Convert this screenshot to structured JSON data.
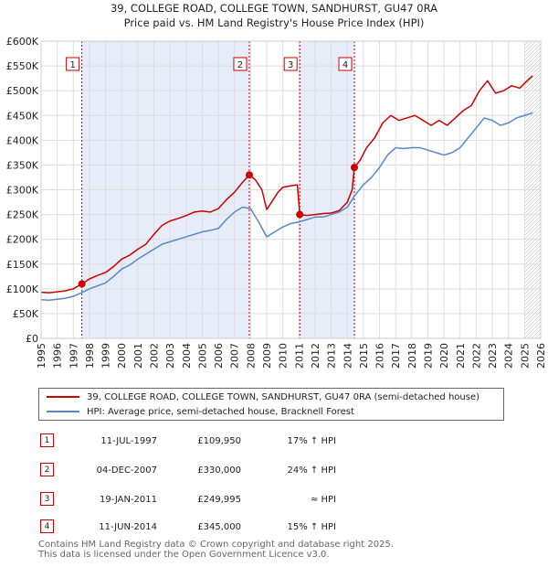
{
  "chart_data": {
    "type": "line",
    "title": "39, COLLEGE ROAD, COLLEGE TOWN, SANDHURST, GU47 0RA",
    "subtitle": "Price paid vs. HM Land Registry's House Price Index (HPI)",
    "xlim": [
      1995,
      2026
    ],
    "ylim": [
      0,
      600000
    ],
    "x_ticks": [
      1995,
      1996,
      1997,
      1998,
      1999,
      2000,
      2001,
      2002,
      2003,
      2004,
      2005,
      2006,
      2007,
      2008,
      2009,
      2010,
      2011,
      2012,
      2013,
      2014,
      2015,
      2016,
      2017,
      2018,
      2019,
      2020,
      2021,
      2022,
      2023,
      2024,
      2025,
      2026
    ],
    "x_tick_labels": [
      "1995",
      "1996",
      "1997",
      "1998",
      "1999",
      "2000",
      "2001",
      "2002",
      "2003",
      "2004",
      "2005",
      "2006",
      "2007",
      "2008",
      "2009",
      "2010",
      "2011",
      "2012",
      "2013",
      "2014",
      "2015",
      "2016",
      "2017",
      "2018",
      "2019",
      "2020",
      "2021",
      "2022",
      "2023",
      "2024",
      "2025",
      "2026"
    ],
    "y_ticks": [
      0,
      50000,
      100000,
      150000,
      200000,
      250000,
      300000,
      350000,
      400000,
      450000,
      500000,
      550000,
      600000
    ],
    "y_tick_labels": [
      "£0",
      "£50K",
      "£100K",
      "£150K",
      "£200K",
      "£250K",
      "£300K",
      "£350K",
      "£400K",
      "£450K",
      "£500K",
      "£550K",
      "£600K"
    ],
    "grid": true,
    "legend_position": "below",
    "forecast_start": 2025.0,
    "series": [
      {
        "name": "39, COLLEGE ROAD, COLLEGE TOWN, SANDHURST, GU47 0RA (semi-detached house)",
        "color": "#cc0000",
        "x": [
          1995.0,
          1995.5,
          1996.0,
          1996.5,
          1997.0,
          1997.53,
          1998.0,
          1998.5,
          1999.0,
          1999.5,
          2000.0,
          2000.5,
          2001.0,
          2001.5,
          2002.0,
          2002.5,
          2003.0,
          2003.5,
          2004.0,
          2004.5,
          2005.0,
          2005.5,
          2006.0,
          2006.5,
          2007.0,
          2007.5,
          2007.92,
          2008.3,
          2008.7,
          2009.0,
          2009.3,
          2009.7,
          2010.0,
          2010.5,
          2010.9,
          2011.05,
          2011.5,
          2012.0,
          2012.5,
          2013.0,
          2013.5,
          2014.0,
          2014.3,
          2014.44,
          2014.8,
          2015.2,
          2015.7,
          2016.2,
          2016.7,
          2017.2,
          2017.7,
          2018.2,
          2018.7,
          2019.2,
          2019.7,
          2020.2,
          2020.7,
          2021.2,
          2021.7,
          2022.2,
          2022.7,
          2023.2,
          2023.7,
          2024.2,
          2024.7,
          2025.0,
          2025.5
        ],
        "values": [
          93000,
          92000,
          94000,
          96000,
          100000,
          109950,
          120000,
          127000,
          133000,
          145000,
          160000,
          168000,
          180000,
          190000,
          210000,
          228000,
          237000,
          242000,
          248000,
          255000,
          257000,
          255000,
          262000,
          280000,
          295000,
          315000,
          330000,
          320000,
          300000,
          260000,
          275000,
          295000,
          305000,
          308000,
          310000,
          249995,
          248000,
          250000,
          252000,
          253000,
          258000,
          275000,
          300000,
          345000,
          360000,
          385000,
          405000,
          435000,
          450000,
          440000,
          445000,
          450000,
          440000,
          430000,
          440000,
          430000,
          445000,
          460000,
          470000,
          500000,
          520000,
          495000,
          500000,
          510000,
          505000,
          515000,
          530000
        ]
      },
      {
        "name": "HPI: Average price, semi-detached house, Bracknell Forest",
        "color": "#5588cc",
        "x": [
          1995.0,
          1995.5,
          1996.0,
          1996.5,
          1997.0,
          1997.5,
          1998.0,
          1998.5,
          1999.0,
          1999.5,
          2000.0,
          2000.5,
          2001.0,
          2001.5,
          2002.0,
          2002.5,
          2003.0,
          2003.5,
          2004.0,
          2004.5,
          2005.0,
          2005.5,
          2006.0,
          2006.5,
          2007.0,
          2007.5,
          2008.0,
          2008.5,
          2009.0,
          2009.5,
          2010.0,
          2010.5,
          2011.0,
          2011.5,
          2012.0,
          2012.5,
          2013.0,
          2013.5,
          2014.0,
          2014.5,
          2015.0,
          2015.5,
          2016.0,
          2016.5,
          2017.0,
          2017.5,
          2018.0,
          2018.5,
          2019.0,
          2019.5,
          2020.0,
          2020.5,
          2021.0,
          2021.5,
          2022.0,
          2022.5,
          2023.0,
          2023.5,
          2024.0,
          2024.5,
          2025.0,
          2025.5
        ],
        "values": [
          78000,
          77000,
          79000,
          81000,
          85000,
          92000,
          100000,
          106000,
          112000,
          125000,
          140000,
          148000,
          160000,
          170000,
          180000,
          190000,
          195000,
          200000,
          205000,
          210000,
          215000,
          218000,
          222000,
          240000,
          255000,
          265000,
          262000,
          235000,
          205000,
          215000,
          225000,
          232000,
          235000,
          240000,
          245000,
          245000,
          250000,
          255000,
          265000,
          290000,
          310000,
          325000,
          345000,
          370000,
          385000,
          383000,
          385000,
          385000,
          380000,
          375000,
          370000,
          375000,
          385000,
          405000,
          425000,
          445000,
          440000,
          430000,
          435000,
          445000,
          450000,
          455000
        ]
      }
    ],
    "annotations": [
      {
        "label": "1",
        "x": 1997.53,
        "value": 109950
      },
      {
        "label": "2",
        "x": 2007.92,
        "value": 330000
      },
      {
        "label": "3",
        "x": 2011.05,
        "value": 249995
      },
      {
        "label": "4",
        "x": 2014.44,
        "value": 345000
      }
    ],
    "shaded_regions": [
      [
        1997.53,
        2007.92
      ],
      [
        2011.05,
        2014.44
      ]
    ]
  },
  "legend": {
    "property_label": "39, COLLEGE ROAD, COLLEGE TOWN, SANDHURST, GU47 0RA (semi-detached house)",
    "hpi_label": "HPI: Average price, semi-detached house, Bracknell Forest"
  },
  "transactions": [
    {
      "num": "1",
      "date": "11-JUL-1997",
      "price": "£109,950",
      "hpi": "17% ↑ HPI"
    },
    {
      "num": "2",
      "date": "04-DEC-2007",
      "price": "£330,000",
      "hpi": "24% ↑ HPI"
    },
    {
      "num": "3",
      "date": "19-JAN-2011",
      "price": "£249,995",
      "hpi": "≈ HPI"
    },
    {
      "num": "4",
      "date": "11-JUN-2014",
      "price": "£345,000",
      "hpi": "15% ↑ HPI"
    }
  ],
  "footer": {
    "line1": "Contains HM Land Registry data © Crown copyright and database right 2025.",
    "line2": "This data is licensed under the Open Government Licence v3.0."
  },
  "colors": {
    "property": "#cc0000",
    "hpi": "#5588cc",
    "shade": "#e6ecf8",
    "grid": "#dddddd"
  }
}
